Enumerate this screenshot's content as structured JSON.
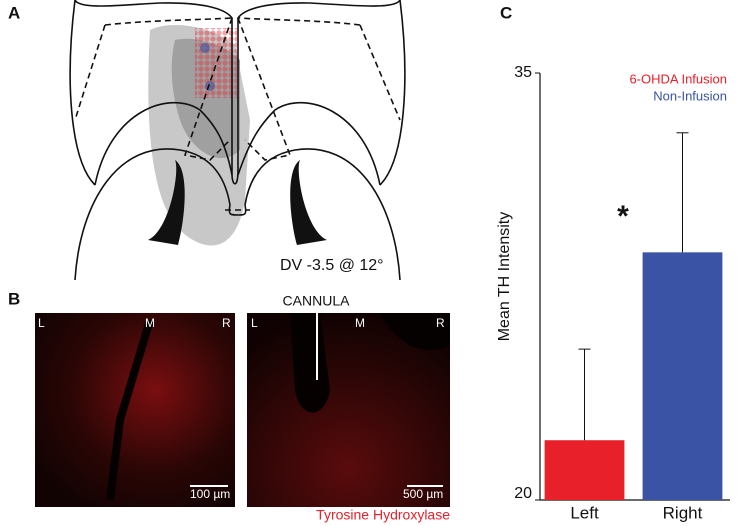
{
  "panels": {
    "a": {
      "label": "A",
      "annotation": "DV -3.5 @ 12°"
    },
    "b": {
      "label": "B",
      "cannula": "CANNULA",
      "stain": "Tyrosine Hydroxylase",
      "images": [
        {
          "left": "L",
          "middle": "M",
          "right": "R",
          "scale": "100 µm"
        },
        {
          "left": "L",
          "middle": "M",
          "right": "R",
          "scale": "500 µm"
        }
      ]
    },
    "c": {
      "label": "C"
    }
  },
  "chart_data": {
    "type": "bar",
    "y_label": "Mean TH Intensity",
    "categories": [
      "Left",
      "Right"
    ],
    "series": [
      {
        "name": "6-OHDA Infusion",
        "color": "#e8202a",
        "values": [
          22.1,
          null
        ],
        "errors": [
          3.2,
          null
        ]
      },
      {
        "name": "Non-Infusion",
        "color": "#3a53a4",
        "values": [
          null,
          28.7
        ],
        "errors": [
          null,
          4.2
        ]
      }
    ],
    "ylim": [
      20,
      35
    ],
    "yticks": [
      20,
      35
    ],
    "annotation": "*",
    "legend": "top-right"
  }
}
